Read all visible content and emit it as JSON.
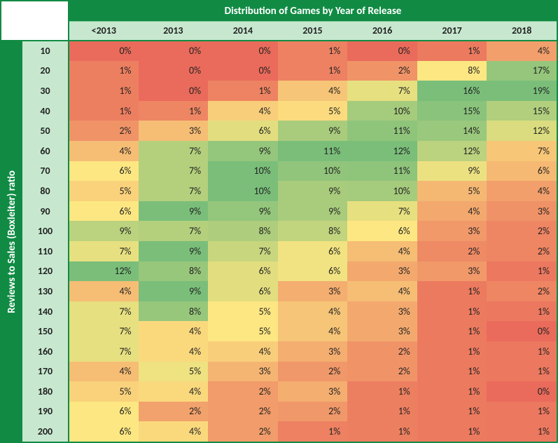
{
  "title_top": "Distribution of Games by Year of Release",
  "title_left": "Reviews to Sales (Boxleiter) ratio",
  "years": [
    "<2013",
    "2013",
    "2014",
    "2015",
    "2016",
    "2017",
    "2018"
  ],
  "row_labels": [
    "10",
    "20",
    "30",
    "40",
    "50",
    "60",
    "70",
    "80",
    "90",
    "100",
    "110",
    "120",
    "130",
    "140",
    "150",
    "160",
    "170",
    "180",
    "190",
    "200"
  ],
  "values": [
    [
      0,
      0,
      0,
      1,
      0,
      1,
      4
    ],
    [
      1,
      0,
      0,
      1,
      2,
      8,
      17
    ],
    [
      1,
      0,
      1,
      4,
      7,
      16,
      19
    ],
    [
      1,
      1,
      4,
      5,
      10,
      15,
      15
    ],
    [
      2,
      3,
      6,
      9,
      11,
      14,
      12
    ],
    [
      4,
      7,
      9,
      11,
      12,
      12,
      7
    ],
    [
      6,
      7,
      10,
      10,
      11,
      9,
      6
    ],
    [
      5,
      7,
      10,
      9,
      10,
      5,
      4
    ],
    [
      6,
      9,
      9,
      9,
      7,
      4,
      3
    ],
    [
      9,
      7,
      8,
      8,
      6,
      3,
      2
    ],
    [
      7,
      9,
      7,
      6,
      4,
      2,
      2
    ],
    [
      12,
      8,
      6,
      6,
      3,
      3,
      1
    ],
    [
      4,
      9,
      6,
      3,
      4,
      1,
      2
    ],
    [
      7,
      8,
      5,
      4,
      3,
      1,
      1
    ],
    [
      7,
      4,
      5,
      4,
      3,
      1,
      0
    ],
    [
      7,
      4,
      4,
      3,
      2,
      1,
      1
    ],
    [
      4,
      5,
      3,
      2,
      2,
      1,
      1
    ],
    [
      5,
      4,
      2,
      3,
      1,
      1,
      0
    ],
    [
      6,
      2,
      2,
      2,
      1,
      1,
      1
    ],
    [
      6,
      4,
      2,
      1,
      1,
      1,
      1
    ]
  ],
  "col_max": [
    12,
    9,
    10,
    11,
    12,
    16,
    19
  ],
  "style": {
    "header_bg": "#118b44",
    "header_text": "#ffffff",
    "subheader_bg": "#c7e8cf",
    "border_color": "#118b44",
    "font_family": "Calibri, 'Segoe UI', Arial, sans-serif",
    "cell_font_size": 14,
    "header_font_size": 15,
    "color_low": {
      "r": 234,
      "g": 107,
      "b": 91
    },
    "color_mid": {
      "r": 253,
      "g": 231,
      "b": 130
    },
    "color_high": {
      "r": 122,
      "g": 190,
      "b": 122
    }
  }
}
